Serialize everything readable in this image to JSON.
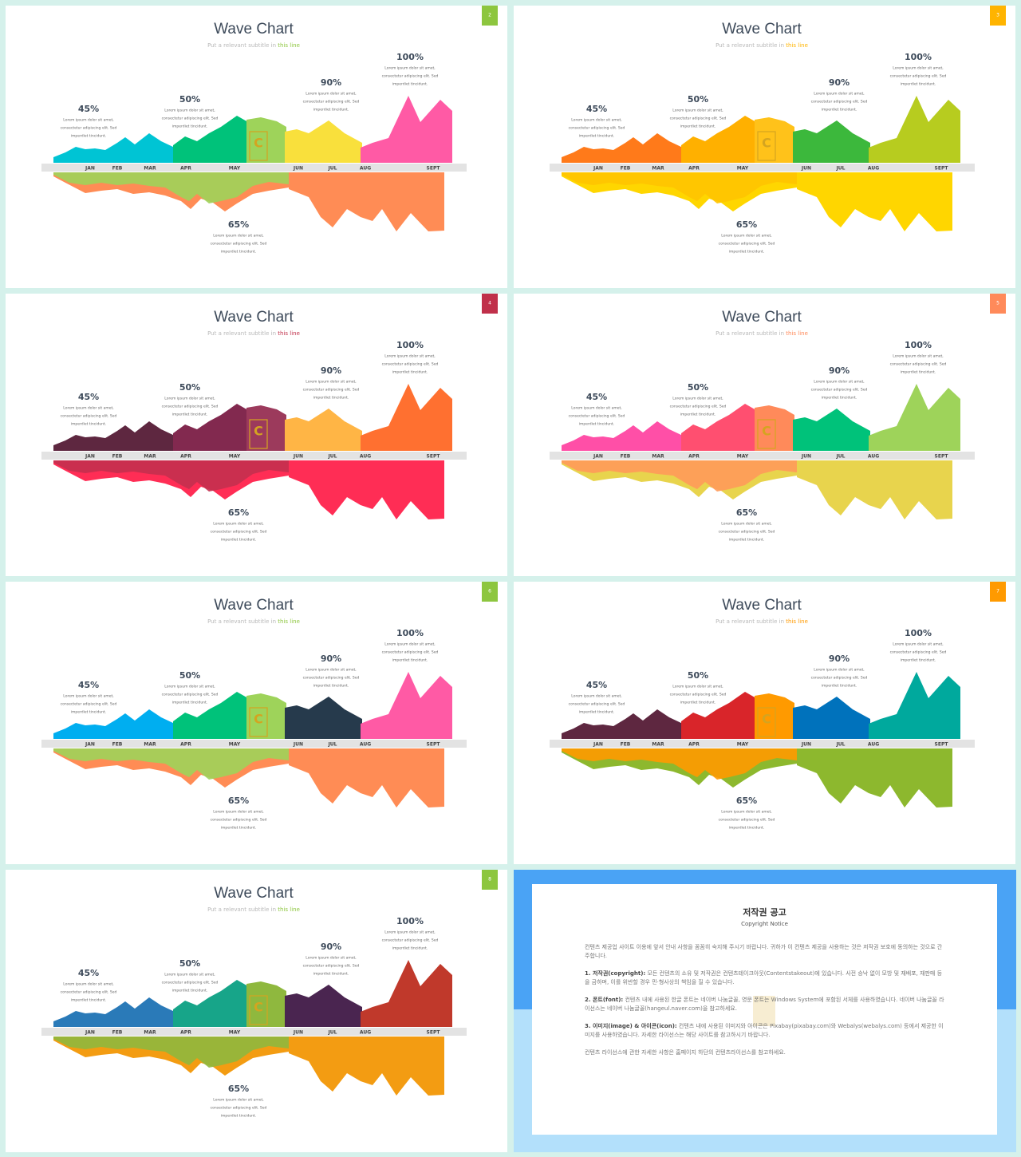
{
  "chart": {
    "title": "Wave Chart",
    "subtitle": "Put a relevant subtitle in ",
    "subtitle_highlight": "this line",
    "labels": [
      "45%",
      "50%",
      "90%",
      "100%",
      "65%"
    ],
    "lorem": [
      "Lorem ipsum dolor sit amet,",
      "consectetur adipiscing elit. Sed",
      "imperdiet tincidunt."
    ],
    "months": [
      "JAN",
      "FEB",
      "MAR",
      "APR",
      "MAY",
      "JUN",
      "JUL",
      "AUG",
      "SEPT"
    ],
    "logo": "C"
  },
  "slides": [
    {
      "number": "2",
      "accent": "#8dc63f",
      "top_colors": [
        "#00c4d4",
        "#00c27a",
        "#9ed35a",
        "#f9e03c",
        "#ff5aa5"
      ],
      "bottom_colors": [
        "#ff8c55",
        "#9ed35a"
      ]
    },
    {
      "number": "3",
      "accent": "#ffb400",
      "top_colors": [
        "#ff7a1a",
        "#ffb000",
        "#ffc21a",
        "#3cb83c",
        "#b7cc1f"
      ],
      "bottom_colors": [
        "#ffd600",
        "#ffc400"
      ]
    },
    {
      "number": "4",
      "accent": "#c0304a",
      "top_colors": [
        "#5e2740",
        "#82294f",
        "#9c3a5c",
        "#ffb545",
        "#ff7030"
      ],
      "bottom_colors": [
        "#ff2d55",
        "#c4304f"
      ]
    },
    {
      "number": "5",
      "accent": "#ff8a5a",
      "top_colors": [
        "#ff4fa7",
        "#ff4f70",
        "#ff8a5a",
        "#00c27a",
        "#9ed35a"
      ],
      "bottom_colors": [
        "#e8d44d",
        "#ff9a5a"
      ]
    },
    {
      "number": "6",
      "accent": "#8dc63f",
      "top_colors": [
        "#00aef0",
        "#00c27a",
        "#9ed35a",
        "#263a4c",
        "#ff5aa5"
      ],
      "bottom_colors": [
        "#ff8c55",
        "#9ed35a"
      ]
    },
    {
      "number": "7",
      "accent": "#ff9a00",
      "top_colors": [
        "#5e2740",
        "#d9252a",
        "#ff9a00",
        "#0072bc",
        "#00a99d"
      ],
      "bottom_colors": [
        "#8db82e",
        "#ff9a00"
      ]
    },
    {
      "number": "8",
      "accent": "#8dc63f",
      "top_colors": [
        "#2a7ab8",
        "#17a589",
        "#8fb83e",
        "#4a2550",
        "#c0392b"
      ],
      "bottom_colors": [
        "#f39c12",
        "#8fb83e"
      ]
    }
  ],
  "notice": {
    "title": "저작권 공고",
    "subtitle": "Copyright Notice",
    "intro": "컨텐츠 제공업 사이트 이용에 앞서 안내 사항을 꼼꼼히 숙지해 주시기 바랍니다. 귀하가 이 컨텐츠 제공을 사용하는 것은 저작권 보호에 동의하는 것으로 간주합니다.",
    "items": [
      {
        "label": "1. 저작권(copyright):",
        "text": " 모든 컨텐츠의 소유 및 저작권은 컨텐츠테이크아웃(Contentstakeout)에 있습니다. 사전 승낙 없이 모방 및 재배포, 재판매 등을 금하며, 이를 위반할 경우 민·형사상의 책임을 질 수 있습니다."
      },
      {
        "label": "2. 폰트(font):",
        "text": " 컨텐츠 내에 사용된 한글 폰트는 네이버 나눔글꼴, 영문 폰트는 Windows System에 포함된 서체를 사용하였습니다. 네이버 나눔글꼴 라이선스는 네이버 나눔글꼴(hangeul.naver.com)을 참고하세요."
      },
      {
        "label": "3. 이미지(image) & 아이콘(icon):",
        "text": " 컨텐츠 내에 사용된 이미지와 아이콘은 Pixabay(pixabay.com)와 Webalys(webalys.com) 등에서 제공한 이미지를 사용하였습니다. 자세한 라이선스는 해당 사이트를 참고하시기 바랍니다."
      }
    ],
    "footer": "컨텐츠 라이선스에 관한 자세한 사항은 홈페이지 하단의 컨텐츠라이선스를 참고하세요."
  }
}
